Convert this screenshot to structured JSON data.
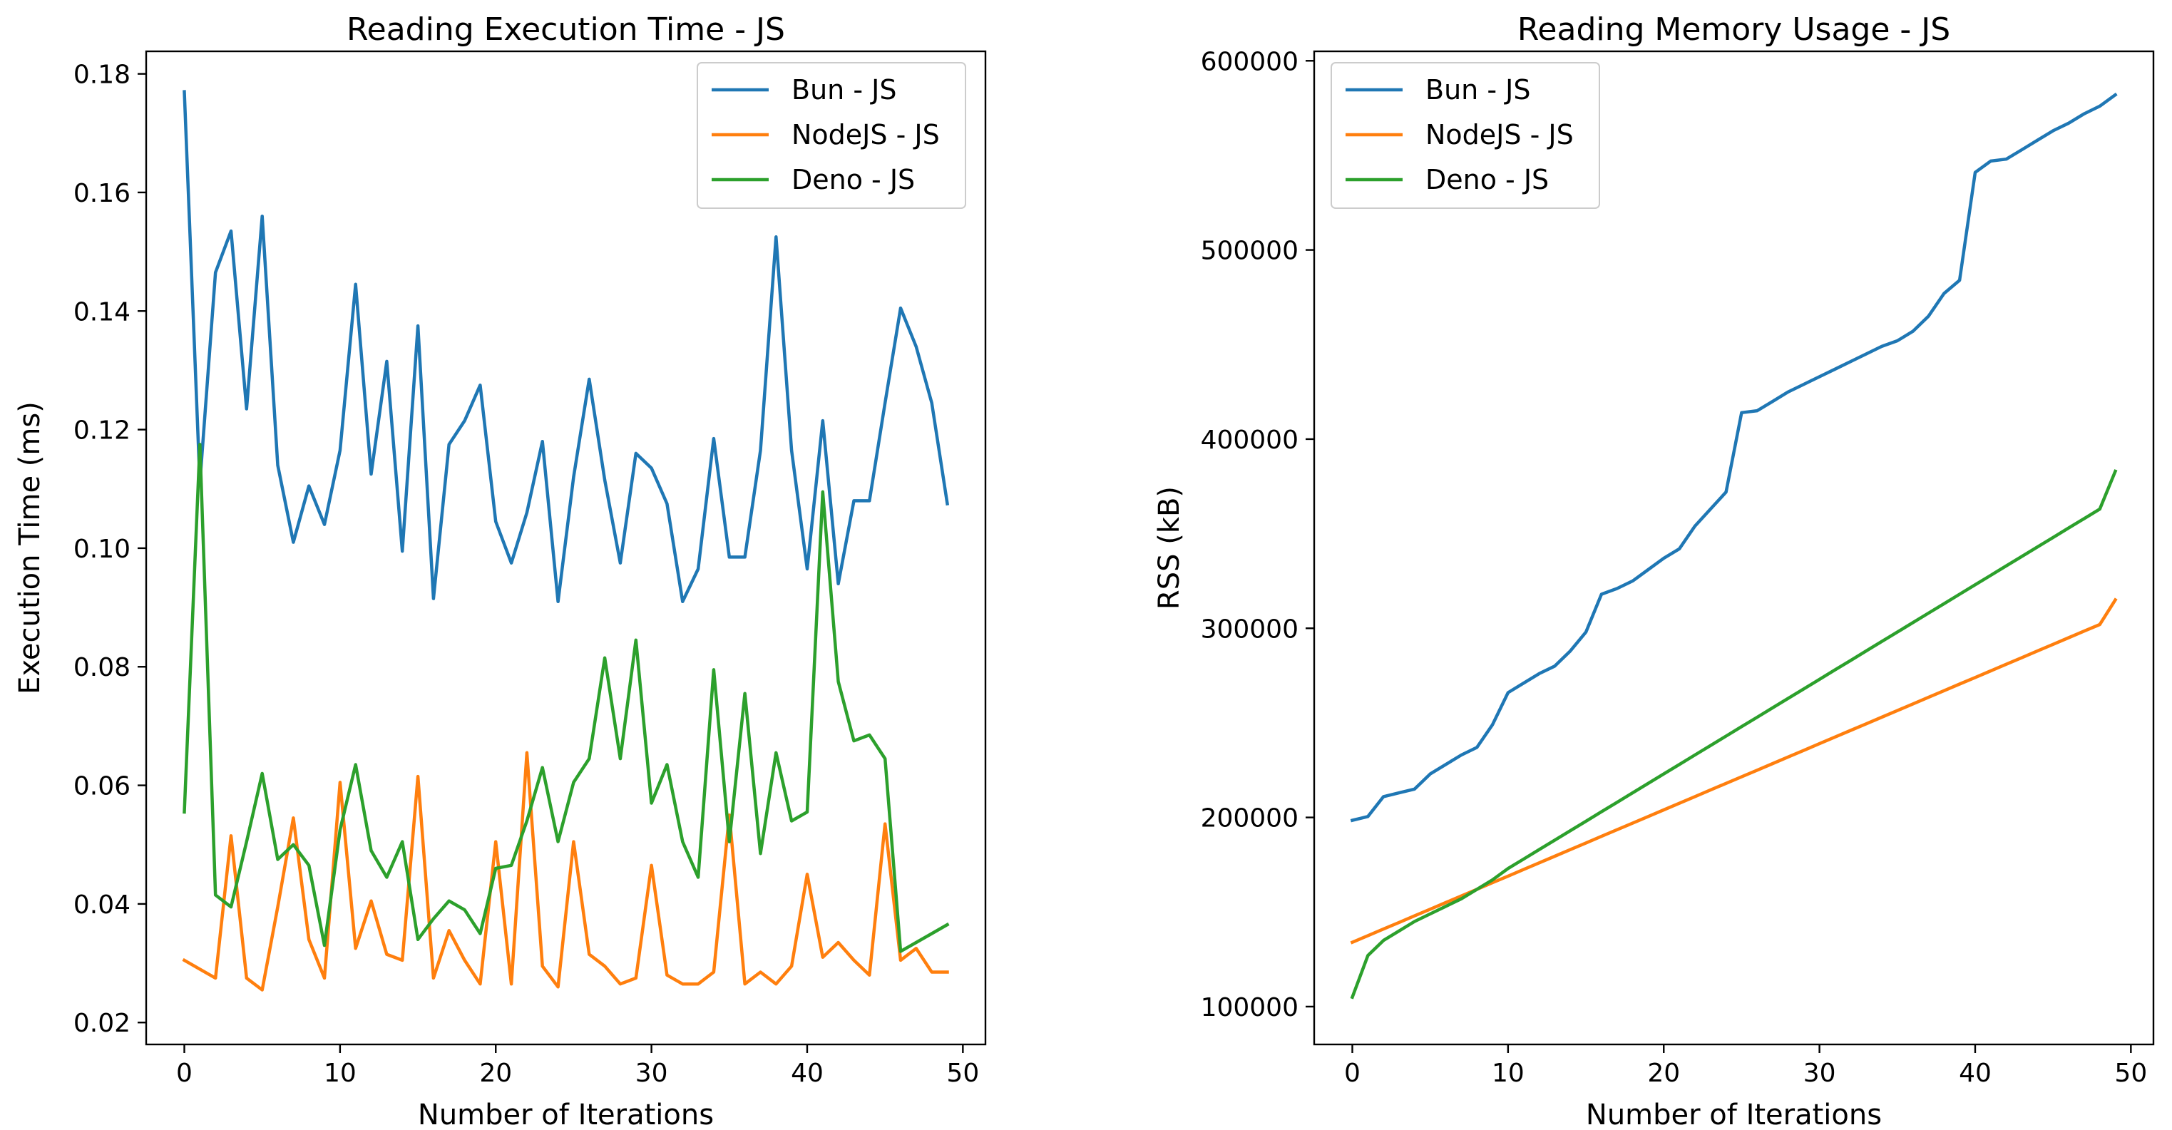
{
  "chart_data": [
    {
      "type": "line",
      "title": "Reading Execution Time - JS",
      "xlabel": "Number of Iterations",
      "ylabel": "Execution Time (ms)",
      "xlim": [
        -2.45,
        51.45
      ],
      "ylim": [
        0.0163,
        0.1838
      ],
      "xticks": [
        0,
        10,
        20,
        30,
        40,
        50
      ],
      "yticks": [
        0.02,
        0.04,
        0.06,
        0.08,
        0.1,
        0.12,
        0.14,
        0.16,
        0.18
      ],
      "ytick_labels": [
        "0.02",
        "0.04",
        "0.06",
        "0.08",
        "0.10",
        "0.12",
        "0.14",
        "0.16",
        "0.18"
      ],
      "legend_position": "upper right",
      "x": [
        0,
        1,
        2,
        3,
        4,
        5,
        6,
        7,
        8,
        9,
        10,
        11,
        12,
        13,
        14,
        15,
        16,
        17,
        18,
        19,
        20,
        21,
        22,
        23,
        24,
        25,
        26,
        27,
        28,
        29,
        30,
        31,
        32,
        33,
        34,
        35,
        36,
        37,
        38,
        39,
        40,
        41,
        42,
        43,
        44,
        45,
        46,
        47,
        48,
        49
      ],
      "series": [
        {
          "name": "Bun - JS",
          "color": "#1f77b4",
          "values": [
            0.177,
            0.111,
            0.1465,
            0.1535,
            0.1235,
            0.156,
            0.114,
            0.101,
            0.1105,
            0.104,
            0.1165,
            0.1445,
            0.1125,
            0.1315,
            0.0995,
            0.1375,
            0.0915,
            0.1175,
            0.1215,
            0.1275,
            0.1045,
            0.0975,
            0.106,
            0.118,
            0.091,
            0.112,
            0.1285,
            0.1115,
            0.0975,
            0.116,
            0.1135,
            0.1075,
            0.091,
            0.0965,
            0.1185,
            0.0985,
            0.0985,
            0.1165,
            0.1525,
            0.1165,
            0.0965,
            0.1215,
            0.094,
            0.108,
            0.108,
            0.1245,
            0.1405,
            0.134,
            0.1245,
            0.1075
          ]
        },
        {
          "name": "NodeJS - JS",
          "color": "#ff7f0e",
          "values": [
            0.0305,
            0.029,
            0.0275,
            0.0515,
            0.0275,
            0.0255,
            0.0395,
            0.0545,
            0.034,
            0.0275,
            0.0605,
            0.0325,
            0.0405,
            0.0315,
            0.0305,
            0.0615,
            0.0275,
            0.0355,
            0.0305,
            0.0265,
            0.0505,
            0.0265,
            0.0655,
            0.0295,
            0.026,
            0.0505,
            0.0315,
            0.0295,
            0.0265,
            0.0275,
            0.0465,
            0.028,
            0.0265,
            0.0265,
            0.0285,
            0.055,
            0.0265,
            0.0285,
            0.0265,
            0.0295,
            0.045,
            0.031,
            0.0335,
            0.0305,
            0.028,
            0.0535,
            0.0305,
            0.0325,
            0.0285,
            0.0285
          ]
        },
        {
          "name": "Deno - JS",
          "color": "#2ca02c",
          "values": [
            0.0555,
            0.1175,
            0.0415,
            0.0395,
            0.0505,
            0.062,
            0.0475,
            0.05,
            0.0465,
            0.033,
            0.0525,
            0.0635,
            0.049,
            0.0445,
            0.0505,
            0.034,
            0.0375,
            0.0405,
            0.039,
            0.035,
            0.046,
            0.0465,
            0.054,
            0.063,
            0.0505,
            0.0605,
            0.0645,
            0.0815,
            0.0645,
            0.0845,
            0.057,
            0.0635,
            0.0505,
            0.0445,
            0.0795,
            0.0505,
            0.0755,
            0.0485,
            0.0655,
            0.054,
            0.0555,
            0.1095,
            0.0775,
            0.0675,
            0.0685,
            0.0645,
            0.032,
            0.0335,
            0.035,
            0.0365
          ]
        }
      ]
    },
    {
      "type": "line",
      "title": "Reading Memory Usage - JS",
      "xlabel": "Number of Iterations",
      "ylabel": "RSS (kB)",
      "xlim": [
        -2.45,
        51.45
      ],
      "ylim": [
        80000,
        605000
      ],
      "xticks": [
        0,
        10,
        20,
        30,
        40,
        50
      ],
      "yticks": [
        100000,
        200000,
        300000,
        400000,
        500000,
        600000
      ],
      "ytick_labels": [
        "100000",
        "200000",
        "300000",
        "400000",
        "500000",
        "600000"
      ],
      "legend_position": "upper left",
      "x": [
        0,
        1,
        2,
        3,
        4,
        5,
        6,
        7,
        8,
        9,
        10,
        11,
        12,
        13,
        14,
        15,
        16,
        17,
        18,
        19,
        20,
        21,
        22,
        23,
        24,
        25,
        26,
        27,
        28,
        29,
        30,
        31,
        32,
        33,
        34,
        35,
        36,
        37,
        38,
        39,
        40,
        41,
        42,
        43,
        44,
        45,
        46,
        47,
        48,
        49
      ],
      "series": [
        {
          "name": "Bun - JS",
          "color": "#1f77b4",
          "values": [
            198500,
            200500,
            211000,
            213000,
            215000,
            223000,
            228000,
            233000,
            237000,
            249000,
            266000,
            271000,
            276000,
            280000,
            288000,
            298000,
            318000,
            321000,
            325000,
            331000,
            337000,
            342000,
            354000,
            363000,
            372000,
            414000,
            415000,
            420000,
            425000,
            429000,
            433000,
            437000,
            441000,
            445000,
            449000,
            452000,
            457000,
            465000,
            477000,
            484000,
            541000,
            547000,
            548000,
            553000,
            558000,
            563000,
            567000,
            572000,
            576000,
            582000
          ]
        },
        {
          "name": "NodeJS - JS",
          "color": "#ff7f0e",
          "values": [
            134000,
            137500,
            141000,
            144500,
            148000,
            151500,
            155000,
            158500,
            162000,
            165500,
            169000,
            172500,
            176000,
            179500,
            183000,
            186500,
            190000,
            193500,
            197000,
            200500,
            204000,
            207500,
            211000,
            214500,
            218000,
            221500,
            225000,
            228500,
            232000,
            235500,
            239000,
            242500,
            246000,
            249500,
            253000,
            256500,
            260000,
            263500,
            267000,
            270500,
            274000,
            277500,
            281000,
            284500,
            288000,
            291500,
            295000,
            298500,
            302000,
            315000
          ]
        },
        {
          "name": "Deno - JS",
          "color": "#2ca02c",
          "values": [
            105000,
            127000,
            135000,
            140000,
            145000,
            149000,
            153000,
            157000,
            162000,
            167000,
            173000,
            178000,
            183000,
            188000,
            193000,
            198000,
            203000,
            208000,
            213000,
            218000,
            223000,
            228000,
            233000,
            238000,
            243000,
            248000,
            253000,
            258000,
            263000,
            268000,
            273000,
            278000,
            283000,
            288000,
            293000,
            298000,
            303000,
            308000,
            313000,
            318000,
            323000,
            328000,
            333000,
            338000,
            343000,
            348000,
            353000,
            358000,
            363000,
            383000
          ]
        }
      ]
    }
  ]
}
